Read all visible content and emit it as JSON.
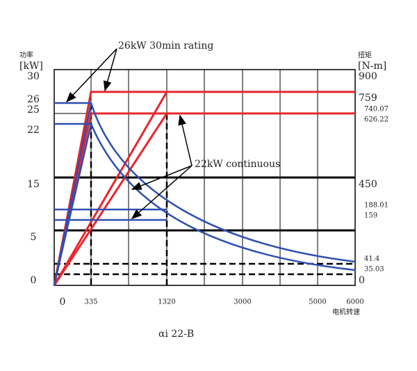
{
  "annotations": {
    "rating": "26kW 30min rating",
    "continuous": "22kW continuous"
  },
  "left_axis": {
    "name": "功率",
    "unit": "[kW]",
    "ticks": [
      30,
      26,
      25,
      22,
      15,
      5,
      0
    ]
  },
  "right_axis": {
    "name": "扭矩",
    "unit": "[N-m]",
    "ticks": [
      900,
      759,
      740.07,
      626.22,
      450,
      188.01,
      159,
      41.4,
      35.03,
      0
    ]
  },
  "x_axis": {
    "name": "电机转速",
    "ticks": [
      0,
      335,
      1320,
      3000,
      5000,
      6000
    ]
  },
  "caption": "αi 22-B"
}
